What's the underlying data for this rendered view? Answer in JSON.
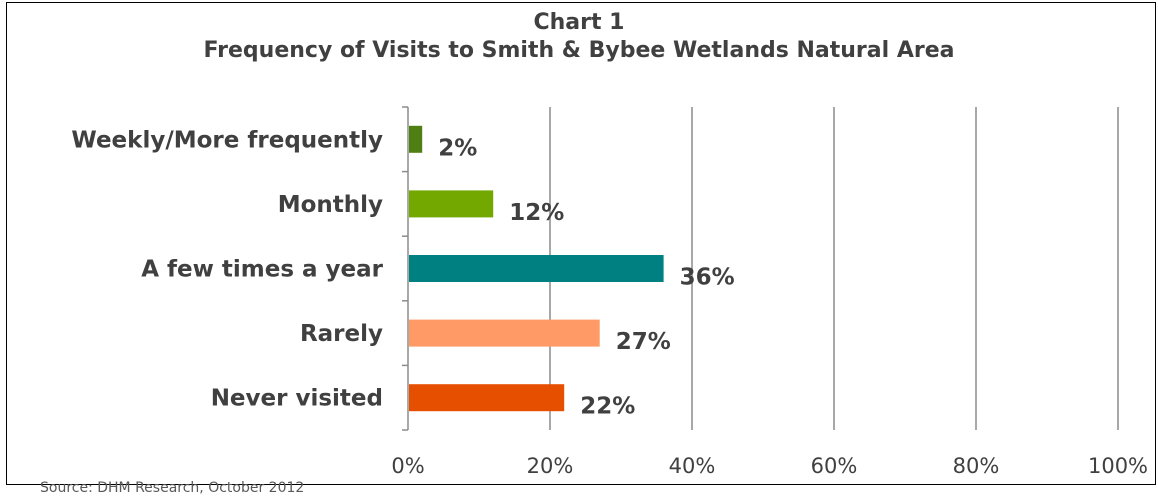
{
  "chart_data": {
    "type": "bar",
    "orientation": "horizontal",
    "title": "Chart 1",
    "subtitle": "Frequency of Visits to Smith & Bybee Wetlands Natural Area",
    "categories": [
      "Weekly/More frequently",
      "Monthly",
      "A few times a year",
      "Rarely",
      "Never visited"
    ],
    "values": [
      2,
      12,
      36,
      27,
      22
    ],
    "data_labels": [
      "2%",
      "12%",
      "36%",
      "27%",
      "22%"
    ],
    "colors": [
      "#4F7F12",
      "#72A800",
      "#008080",
      "#FF9966",
      "#E64F00"
    ],
    "xlim": [
      0,
      100
    ],
    "xticks": [
      0,
      20,
      40,
      60,
      80,
      100
    ],
    "xtick_labels": [
      "0%",
      "20%",
      "40%",
      "60%",
      "80%",
      "100%"
    ],
    "grid": true,
    "legend": "none"
  },
  "source": "Source: DHM Research, October 2012"
}
